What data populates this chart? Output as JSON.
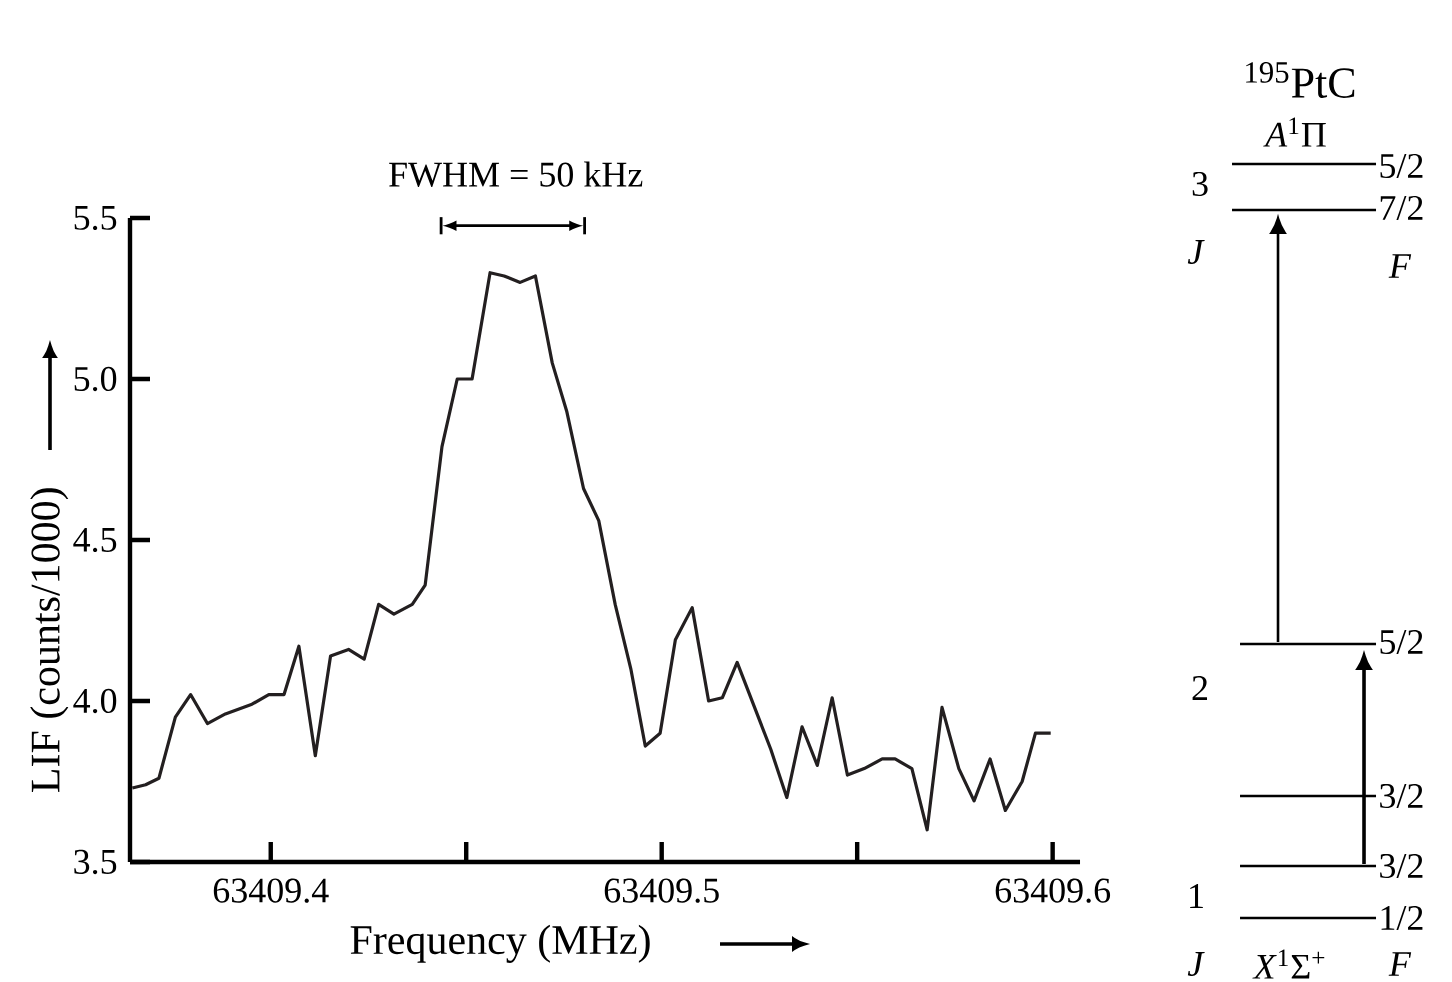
{
  "chart_data": [
    {
      "type": "line",
      "xlabel": "Frequency (MHz)",
      "ylabel": "LIF (counts/1000)",
      "annotations": [
        "FWHM = 50 kHz"
      ],
      "color": "#231f20",
      "line_style": "solid",
      "x": [
        63409.3646,
        63409.368,
        63409.3714,
        63409.3756,
        63409.3795,
        63409.3838,
        63409.3884,
        63409.3952,
        63409.3995,
        63409.4034,
        63409.4072,
        63409.4114,
        63409.4153,
        63409.4199,
        63409.4239,
        63409.4276,
        63409.4315,
        63409.4362,
        63409.4395,
        63409.4438,
        63409.4477,
        63409.4515,
        63409.4561,
        63409.4597,
        63409.4638,
        63409.4677,
        63409.472,
        63409.4757,
        63409.48,
        63409.4839,
        63409.4881,
        63409.4921,
        63409.4958,
        63409.4996,
        63409.5035,
        63409.5078,
        63409.512,
        63409.5155,
        63409.5193,
        63409.5279,
        63409.532,
        63409.5359,
        63409.5398,
        63409.5436,
        63409.5475,
        63409.5518,
        63409.5564,
        63409.5597,
        63409.564,
        63409.5679,
        63409.5717,
        63409.576,
        63409.5799,
        63409.584,
        63409.5879,
        63409.5922,
        63409.5956,
        63409.5995
      ],
      "values": [
        3.73,
        3.74,
        3.76,
        3.95,
        4.02,
        3.93,
        3.96,
        3.99,
        4.02,
        4.02,
        4.17,
        3.83,
        4.14,
        4.16,
        4.13,
        4.3,
        4.27,
        4.3,
        4.36,
        4.79,
        5.0,
        5.0,
        5.33,
        5.32,
        5.3,
        5.32,
        5.05,
        4.9,
        4.66,
        4.56,
        4.3,
        4.1,
        3.86,
        3.9,
        4.19,
        4.29,
        4.0,
        4.01,
        4.12,
        3.85,
        3.7,
        3.92,
        3.8,
        4.01,
        3.77,
        3.79,
        3.82,
        3.82,
        3.79,
        3.6,
        3.98,
        3.79,
        3.69,
        3.82,
        3.66,
        3.75,
        3.9,
        3.9
      ],
      "xlim": [
        63409.364,
        63409.607
      ],
      "ylim": [
        3.5,
        5.5
      ],
      "xticks": [
        63409.4,
        {
          "value": 63409.45,
          "label": null
        },
        63409.5,
        {
          "value": 63409.55,
          "label": null
        },
        63409.6
      ],
      "yticks": [
        3.5,
        {
          "value": 4,
          "label": "4.0"
        },
        4.5,
        {
          "value": 5,
          "label": "5.0"
        },
        5.5
      ]
    },
    {
      "type": "other",
      "title": "$^{195}$PtC",
      "annotations": [
        "*A*$^{1}$Π",
        "3",
        "5/2",
        "7/2",
        "*J*",
        "*F*",
        "5/2",
        "2",
        "3/2",
        "3/2",
        "1",
        "1/2",
        "*J*",
        "*X*$^{1}$Σ$^{+}$",
        "*F*"
      ]
    }
  ]
}
